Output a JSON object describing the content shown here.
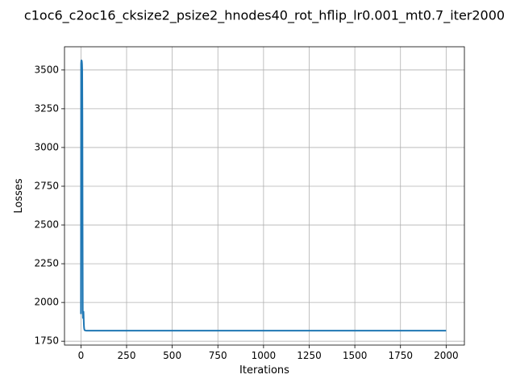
{
  "chart_data": {
    "type": "line",
    "title": "c1oc6_c2oc16_cksize2_psize2_hnodes40_rot_hflip_lr0.001_mt0.7_iter2000",
    "xlabel": "Iterations",
    "ylabel": "Losses",
    "xlim": [
      -90,
      2100
    ],
    "ylim": [
      1725,
      3650
    ],
    "x_ticks": [
      0,
      250,
      500,
      750,
      1000,
      1250,
      1500,
      1750,
      2000
    ],
    "y_ticks": [
      1750,
      2000,
      2250,
      2500,
      2750,
      3000,
      3250,
      3500
    ],
    "grid": true,
    "series": [
      {
        "color": "#1f77b4",
        "x": [
          0,
          1,
          2,
          3,
          4,
          5,
          6,
          7,
          8,
          9,
          10,
          11,
          12,
          13,
          14,
          15,
          16,
          17,
          18,
          19,
          20,
          22,
          25,
          30,
          40,
          60,
          100,
          200,
          500,
          1000,
          1500,
          2000
        ],
        "y": [
          1925,
          3540,
          3560,
          3562,
          3560,
          3555,
          3540,
          3500,
          3200,
          2500,
          1950,
          1900,
          1930,
          1925,
          1940,
          1900,
          1860,
          1840,
          1830,
          1825,
          1822,
          1820,
          1819,
          1818,
          1818,
          1818,
          1818,
          1818,
          1818,
          1818,
          1818,
          1818
        ]
      }
    ]
  }
}
